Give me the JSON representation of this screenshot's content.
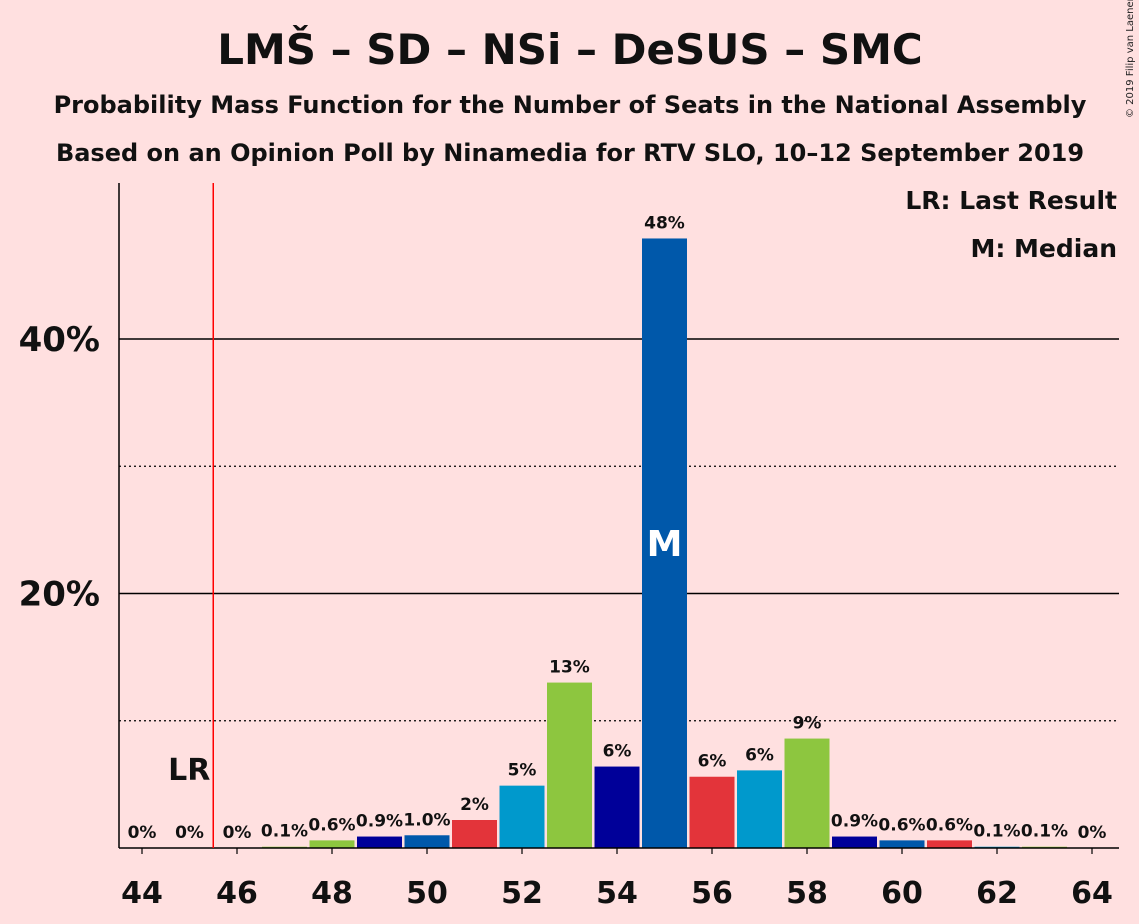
{
  "chart_data": {
    "type": "bar",
    "title": "LMŠ – SD – NSi – DeSUS – SMC",
    "subtitle": "Probability Mass Function for the Number of Seats in the National Assembly",
    "subtitle2": "Based on an Opinion Poll by Ninamedia for RTV SLO, 10–12 September 2019",
    "copyright": "© 2019 Filip van Laenen",
    "legend": {
      "position": "top-right",
      "last_result": "LR: Last Result",
      "median": "M: Median"
    },
    "last_result_label": "LR",
    "last_result_seat": 45.5,
    "median_label": "M",
    "median_seat": 55,
    "ylim": [
      0,
      52
    ],
    "yticks": [
      {
        "value": 20,
        "label": "20%"
      },
      {
        "value": 40,
        "label": "40%"
      }
    ],
    "minor_gridlines": [
      10,
      30
    ],
    "xticks": [
      44,
      46,
      48,
      50,
      52,
      54,
      56,
      58,
      60,
      62,
      64
    ],
    "bars": [
      {
        "seat": 44,
        "value": 0,
        "label": "0%",
        "color": "#0058AA"
      },
      {
        "seat": 45,
        "value": 0,
        "label": "0%",
        "color": "#0058AA"
      },
      {
        "seat": 46,
        "value": 0,
        "label": "0%",
        "color": "#0058AA"
      },
      {
        "seat": 47,
        "value": 0.1,
        "label": "0.1%",
        "color": "#8DC63F"
      },
      {
        "seat": 48,
        "value": 0.6,
        "label": "0.6%",
        "color": "#8DC63F"
      },
      {
        "seat": 49,
        "value": 0.9,
        "label": "0.9%",
        "color": "#000099"
      },
      {
        "seat": 50,
        "value": 1.0,
        "label": "1.0%",
        "color": "#0058AA"
      },
      {
        "seat": 51,
        "value": 2.2,
        "label": "2%",
        "color": "#E3343A"
      },
      {
        "seat": 52,
        "value": 4.9,
        "label": "5%",
        "color": "#0099CC"
      },
      {
        "seat": 53,
        "value": 13.0,
        "label": "13%",
        "color": "#8DC63F"
      },
      {
        "seat": 54,
        "value": 6.4,
        "label": "6%",
        "color": "#000099"
      },
      {
        "seat": 55,
        "value": 47.9,
        "label": "48%",
        "color": "#0058AA"
      },
      {
        "seat": 56,
        "value": 5.6,
        "label": "6%",
        "color": "#E3343A"
      },
      {
        "seat": 57,
        "value": 6.1,
        "label": "6%",
        "color": "#0099CC"
      },
      {
        "seat": 58,
        "value": 8.6,
        "label": "9%",
        "color": "#8DC63F"
      },
      {
        "seat": 59,
        "value": 0.9,
        "label": "0.9%",
        "color": "#000099"
      },
      {
        "seat": 60,
        "value": 0.6,
        "label": "0.6%",
        "color": "#0058AA"
      },
      {
        "seat": 61,
        "value": 0.6,
        "label": "0.6%",
        "color": "#E3343A"
      },
      {
        "seat": 62,
        "value": 0.1,
        "label": "0.1%",
        "color": "#0099CC"
      },
      {
        "seat": 63,
        "value": 0.1,
        "label": "0.1%",
        "color": "#8DC63F"
      },
      {
        "seat": 64,
        "value": 0,
        "label": "0%",
        "color": "#000099"
      }
    ],
    "colors": {
      "background": "#FFE0E0",
      "last_result_line": "#FF0000",
      "gridline": "#000000"
    }
  }
}
